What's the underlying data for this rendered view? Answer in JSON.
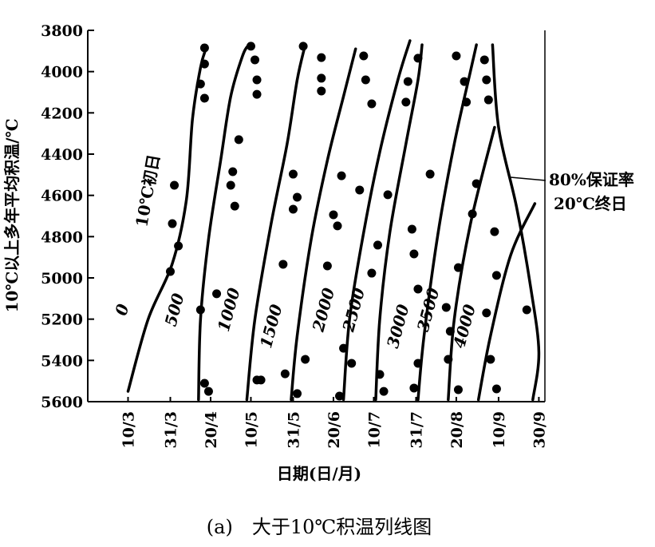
{
  "chart_data": {
    "type": "line",
    "y_label": "10℃以上多年平均积温/℃",
    "x_label": "日期(日/月)",
    "caption": "(a)　大于10℃积温列线图",
    "ylim": [
      3800,
      5600
    ],
    "y_inverted": true,
    "yticks": [
      3800,
      4000,
      4200,
      4400,
      4600,
      4800,
      5000,
      5200,
      5400,
      5600
    ],
    "xlim": [
      49,
      276
    ],
    "xticks": [
      {
        "value": 69,
        "label": "10/3"
      },
      {
        "value": 90,
        "label": "31/3"
      },
      {
        "value": 110,
        "label": "20/4"
      },
      {
        "value": 130,
        "label": "10/5"
      },
      {
        "value": 151,
        "label": "31/5"
      },
      {
        "value": 171,
        "label": "20/6"
      },
      {
        "value": 191,
        "label": "10/7"
      },
      {
        "value": 212,
        "label": "31/7"
      },
      {
        "value": 232,
        "label": "20/8"
      },
      {
        "value": 253,
        "label": "10/9"
      },
      {
        "value": 273,
        "label": "30/9"
      }
    ],
    "color": "#000000",
    "series": [
      {
        "name": "0",
        "x": [
          69,
          79,
          91,
          98,
          101,
          105,
          108
        ],
        "values": [
          5550,
          5200,
          4930,
          4620,
          4230,
          3980,
          3880
        ]
      },
      {
        "name": "500",
        "x": [
          104,
          105,
          109,
          115,
          120,
          126,
          129
        ],
        "values": [
          5590,
          5200,
          4810,
          4430,
          4120,
          3920,
          3870
        ]
      },
      {
        "name": "1000",
        "x": [
          128,
          132,
          140,
          148,
          153,
          157
        ],
        "values": [
          5590,
          5200,
          4740,
          4350,
          4040,
          3870
        ]
      },
      {
        "name": "1500",
        "x": [
          150,
          153,
          160,
          168,
          176,
          182
        ],
        "values": [
          5590,
          5280,
          4810,
          4430,
          4120,
          3890
        ]
      },
      {
        "name": "2000",
        "x": [
          176,
          179,
          186,
          194,
          203,
          209
        ],
        "values": [
          5590,
          5200,
          4780,
          4390,
          4040,
          3850
        ]
      },
      {
        "name": "2500",
        "x": [
          192,
          194,
          199,
          207,
          213,
          215
        ],
        "values": [
          5590,
          5200,
          4780,
          4350,
          4040,
          3870
        ]
      },
      {
        "name": "3000",
        "x": [
          213,
          216,
          223,
          231,
          239,
          242
        ],
        "values": [
          5590,
          5280,
          4780,
          4350,
          4000,
          3870
        ]
      },
      {
        "name": "3500",
        "x": [
          228,
          231,
          239,
          251
        ],
        "values": [
          5590,
          5200,
          4740,
          4270
        ]
      },
      {
        "name": "4000",
        "x": [
          243,
          249,
          259,
          271
        ],
        "values": [
          5590,
          5280,
          4890,
          4640
        ]
      }
    ],
    "end_line": {
      "x": [
        250,
        253,
        262,
        269,
        273,
        270
      ],
      "values": [
        3870,
        4270,
        4660,
        5050,
        5360,
        5590
      ]
    },
    "annotations": {
      "start": "10℃初日",
      "guarantee": "80%保证率",
      "end": "20℃终日"
    },
    "scatter": {
      "x": [
        107,
        107,
        105,
        107,
        92,
        91,
        94,
        90,
        130,
        132,
        133,
        133,
        124,
        121,
        120,
        122,
        113,
        105,
        107,
        109,
        156,
        165,
        165,
        165,
        151,
        153,
        151,
        146,
        157,
        133,
        135,
        147,
        153,
        175,
        171,
        173,
        168,
        176,
        180,
        174,
        186,
        187,
        190,
        184,
        193,
        190,
        198,
        194,
        196,
        213,
        208,
        207,
        219,
        210,
        211,
        213,
        213,
        211,
        232,
        236,
        237,
        242,
        240,
        233,
        227,
        229,
        228,
        233,
        246,
        247,
        248,
        251,
        252,
        247,
        249,
        252,
        267
      ],
      "y": [
        3885,
        3963,
        4060,
        4129,
        4551,
        4737,
        4845,
        4969,
        3877,
        3943,
        4040,
        4110,
        4330,
        4485,
        4551,
        4652,
        5077,
        5155,
        5511,
        5550,
        3877,
        3932,
        4032,
        4094,
        4497,
        4609,
        4667,
        4934,
        5395,
        5495,
        5495,
        5465,
        5561,
        4505,
        4694,
        4748,
        4942,
        5341,
        5414,
        5573,
        3924,
        4040,
        4156,
        4574,
        4841,
        4977,
        4597,
        5468,
        5550,
        3935,
        4048,
        4148,
        4497,
        4764,
        4884,
        5054,
        5414,
        5534,
        3924,
        4048,
        4148,
        4543,
        4690,
        4950,
        5143,
        5259,
        5395,
        5542,
        3943,
        4040,
        4137,
        4776,
        4988,
        5170,
        5395,
        5538,
        5155
      ]
    }
  }
}
